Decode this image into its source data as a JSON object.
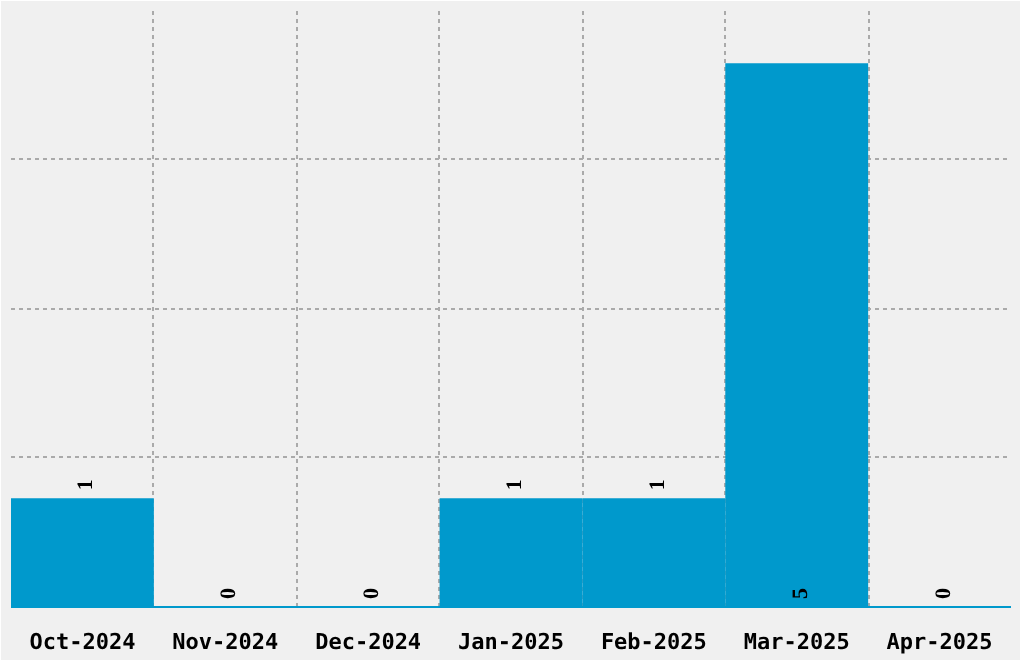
{
  "chart_data": {
    "type": "bar",
    "categories": [
      "Oct-2024",
      "Nov-2024",
      "Dec-2024",
      "Jan-2025",
      "Feb-2025",
      "Mar-2025",
      "Apr-2025"
    ],
    "values": [
      1,
      0,
      0,
      1,
      1,
      5,
      0
    ],
    "color": "#0099cc",
    "ylim": [
      0,
      5.5
    ],
    "yticks": [
      {
        "value": 1.375,
        "label": null
      },
      {
        "value": 2.75,
        "label": null
      },
      {
        "value": 4.125,
        "label": null
      }
    ],
    "tick_labels": "x",
    "grid": true,
    "data_labels": true
  }
}
